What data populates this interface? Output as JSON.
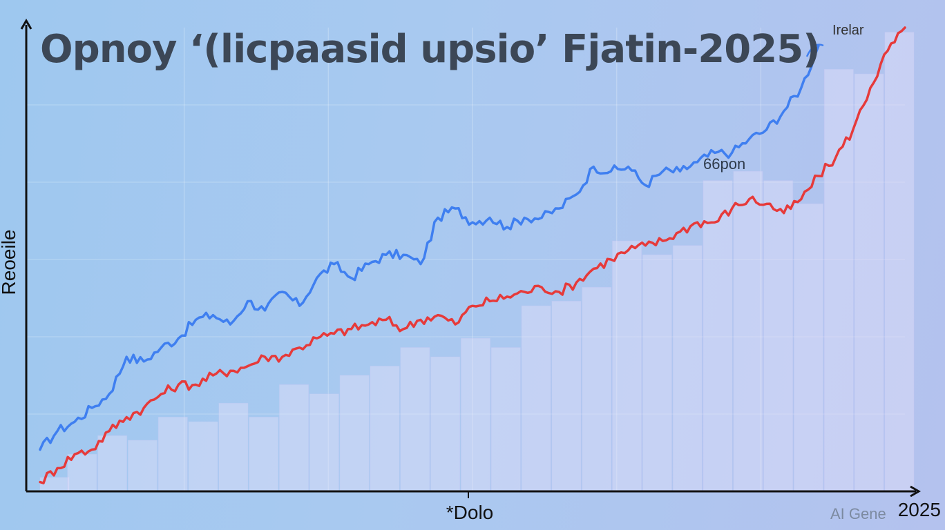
{
  "chart_data": {
    "type": "line",
    "title": "Opnoy ‘(licpaasid upsio’ Fjatin-2025)",
    "ylabel": "Reoeile",
    "xlabel": "*Dolo",
    "x_tick_end": "2025",
    "legend": {
      "entries": [
        "Irelar"
      ],
      "placement": "top-right"
    },
    "annotation": "66pon",
    "watermark": "AI Gene",
    "x_range": [
      0,
      100
    ],
    "y_range": [
      0,
      100
    ],
    "bars": {
      "x": [
        0,
        3.5,
        7,
        10.5,
        14,
        17.5,
        21,
        24.5,
        28,
        31.5,
        35,
        38.5,
        42,
        45.5,
        49,
        52.5,
        56,
        59.5,
        63,
        66.5,
        70,
        73.5,
        77,
        80.5,
        84,
        87.5,
        91,
        94.5,
        98
      ],
      "values": [
        3,
        8,
        12,
        11,
        16,
        15,
        19,
        16,
        23,
        21,
        25,
        27,
        31,
        29,
        33,
        31,
        40,
        41,
        44,
        54,
        51,
        53,
        67,
        69,
        67,
        62,
        91,
        90,
        99
      ]
    },
    "series": [
      {
        "color": "#3f7ff0",
        "x": [
          0,
          2,
          4,
          6,
          8,
          10,
          12,
          14,
          16,
          18,
          20,
          22,
          24,
          26,
          28,
          30,
          32,
          34,
          36,
          38,
          40,
          42,
          44,
          46,
          48,
          50,
          52,
          54,
          56,
          58,
          60,
          62,
          64,
          66,
          68,
          70,
          72,
          74,
          76,
          78,
          80,
          82,
          84,
          86,
          88,
          90
        ],
        "values": [
          9,
          13,
          15,
          18,
          21,
          29,
          28,
          31,
          33,
          37,
          38,
          36,
          41,
          39,
          43,
          40,
          46,
          49,
          46,
          49,
          51,
          51,
          49,
          59,
          61,
          58,
          59,
          57,
          59,
          59,
          61,
          64,
          70,
          69,
          70,
          66,
          69,
          69,
          71,
          73,
          73,
          76,
          78,
          82,
          87,
          96
        ]
      },
      {
        "color": "#e63a3a",
        "x": [
          0,
          2,
          4,
          6,
          8,
          10,
          12,
          14,
          16,
          18,
          20,
          22,
          24,
          26,
          28,
          30,
          32,
          34,
          36,
          38,
          40,
          42,
          44,
          46,
          48,
          50,
          52,
          54,
          56,
          58,
          60,
          62,
          64,
          66,
          68,
          70,
          72,
          74,
          76,
          78,
          80,
          82,
          84,
          86,
          88,
          90,
          92,
          94,
          96,
          98,
          100
        ],
        "values": [
          2,
          5,
          8,
          9,
          13,
          16,
          18,
          21,
          23,
          23,
          25,
          26,
          27,
          29,
          29,
          31,
          33,
          34,
          35,
          36,
          37,
          35,
          37,
          38,
          36,
          40,
          41,
          42,
          43,
          44,
          43,
          45,
          48,
          50,
          52,
          53,
          54,
          56,
          58,
          58,
          61,
          63,
          62,
          60,
          63,
          68,
          72,
          78,
          87,
          95,
          100
        ]
      }
    ]
  }
}
